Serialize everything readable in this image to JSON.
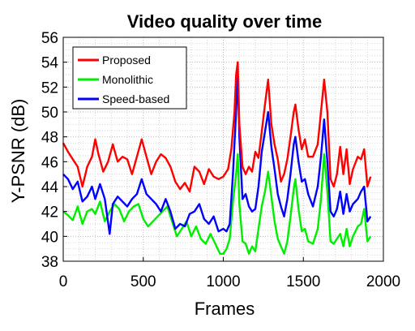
{
  "chart_data": {
    "type": "line",
    "title": "Video quality over time",
    "xlabel": "Frames",
    "ylabel": "Y-PSNR (dB)",
    "xlim": [
      0,
      2000
    ],
    "ylim": [
      38,
      56
    ],
    "xticks": [
      0,
      500,
      1000,
      1500,
      2000
    ],
    "yticks": [
      38,
      40,
      42,
      44,
      46,
      48,
      50,
      52,
      54,
      56
    ],
    "grid": true,
    "legend_position": "top-left",
    "series": [
      {
        "name": "Proposed",
        "color": "#ff0000",
        "points": [
          [
            0,
            47.5
          ],
          [
            30,
            46.8
          ],
          [
            60,
            46.2
          ],
          [
            90,
            45.6
          ],
          [
            120,
            44.0
          ],
          [
            150,
            45.6
          ],
          [
            180,
            46.4
          ],
          [
            200,
            47.8
          ],
          [
            220,
            46.6
          ],
          [
            250,
            45.2
          ],
          [
            280,
            46.0
          ],
          [
            310,
            47.4
          ],
          [
            340,
            46.0
          ],
          [
            370,
            46.4
          ],
          [
            400,
            46.2
          ],
          [
            430,
            45.0
          ],
          [
            460,
            46.4
          ],
          [
            490,
            47.8
          ],
          [
            520,
            46.4
          ],
          [
            550,
            45.0
          ],
          [
            580,
            46.0
          ],
          [
            610,
            46.6
          ],
          [
            640,
            46.3
          ],
          [
            670,
            45.6
          ],
          [
            700,
            44.4
          ],
          [
            730,
            43.8
          ],
          [
            760,
            44.3
          ],
          [
            790,
            43.6
          ],
          [
            820,
            45.6
          ],
          [
            850,
            45.2
          ],
          [
            880,
            44.2
          ],
          [
            910,
            45.4
          ],
          [
            940,
            44.8
          ],
          [
            970,
            44.6
          ],
          [
            1000,
            44.8
          ],
          [
            1030,
            45.4
          ],
          [
            1050,
            47.0
          ],
          [
            1070,
            50.0
          ],
          [
            1080,
            53.0
          ],
          [
            1090,
            54.0
          ],
          [
            1100,
            49.0
          ],
          [
            1120,
            45.6
          ],
          [
            1140,
            45.0
          ],
          [
            1160,
            45.6
          ],
          [
            1180,
            45.2
          ],
          [
            1200,
            46.8
          ],
          [
            1220,
            46.3
          ],
          [
            1240,
            48.4
          ],
          [
            1260,
            50.6
          ],
          [
            1280,
            52.6
          ],
          [
            1300,
            49.0
          ],
          [
            1320,
            47.4
          ],
          [
            1340,
            46.2
          ],
          [
            1360,
            44.4
          ],
          [
            1380,
            45.0
          ],
          [
            1400,
            46.2
          ],
          [
            1420,
            48.0
          ],
          [
            1440,
            50.0
          ],
          [
            1450,
            50.6
          ],
          [
            1470,
            48.6
          ],
          [
            1490,
            47.0
          ],
          [
            1510,
            47.8
          ],
          [
            1530,
            46.4
          ],
          [
            1560,
            46.4
          ],
          [
            1590,
            47.4
          ],
          [
            1610,
            50.0
          ],
          [
            1630,
            52.6
          ],
          [
            1650,
            50.0
          ],
          [
            1670,
            44.6
          ],
          [
            1690,
            44.0
          ],
          [
            1710,
            45.0
          ],
          [
            1730,
            47.2
          ],
          [
            1750,
            45.0
          ],
          [
            1770,
            47.0
          ],
          [
            1790,
            44.2
          ],
          [
            1810,
            45.4
          ],
          [
            1840,
            46.4
          ],
          [
            1860,
            46.2
          ],
          [
            1880,
            47.0
          ],
          [
            1900,
            44.0
          ],
          [
            1920,
            44.8
          ]
        ]
      },
      {
        "name": "Monolithic",
        "color": "#00ee00",
        "points": [
          [
            0,
            42.0
          ],
          [
            30,
            41.7
          ],
          [
            60,
            41.3
          ],
          [
            90,
            42.4
          ],
          [
            120,
            41.0
          ],
          [
            150,
            42.0
          ],
          [
            180,
            42.2
          ],
          [
            200,
            41.8
          ],
          [
            230,
            42.8
          ],
          [
            260,
            41.2
          ],
          [
            290,
            42.0
          ],
          [
            320,
            42.6
          ],
          [
            350,
            42.2
          ],
          [
            380,
            41.2
          ],
          [
            410,
            42.0
          ],
          [
            440,
            42.4
          ],
          [
            470,
            42.6
          ],
          [
            500,
            41.4
          ],
          [
            530,
            40.8
          ],
          [
            560,
            41.2
          ],
          [
            590,
            41.6
          ],
          [
            620,
            42.0
          ],
          [
            650,
            42.4
          ],
          [
            680,
            41.2
          ],
          [
            710,
            40.0
          ],
          [
            740,
            40.6
          ],
          [
            770,
            41.2
          ],
          [
            800,
            40.0
          ],
          [
            830,
            40.8
          ],
          [
            860,
            39.8
          ],
          [
            890,
            39.4
          ],
          [
            920,
            40.2
          ],
          [
            950,
            39.4
          ],
          [
            980,
            38.6
          ],
          [
            1000,
            38.6
          ],
          [
            1020,
            39.0
          ],
          [
            1040,
            39.8
          ],
          [
            1060,
            42.8
          ],
          [
            1080,
            45.0
          ],
          [
            1090,
            46.6
          ],
          [
            1100,
            42.6
          ],
          [
            1120,
            39.6
          ],
          [
            1140,
            39.4
          ],
          [
            1160,
            38.6
          ],
          [
            1180,
            39.2
          ],
          [
            1200,
            38.8
          ],
          [
            1220,
            40.6
          ],
          [
            1240,
            42.4
          ],
          [
            1260,
            43.6
          ],
          [
            1280,
            45.2
          ],
          [
            1300,
            43.2
          ],
          [
            1320,
            41.2
          ],
          [
            1340,
            39.8
          ],
          [
            1360,
            39.2
          ],
          [
            1380,
            38.6
          ],
          [
            1400,
            39.6
          ],
          [
            1420,
            41.6
          ],
          [
            1440,
            43.8
          ],
          [
            1450,
            44.6
          ],
          [
            1470,
            42.2
          ],
          [
            1490,
            40.4
          ],
          [
            1510,
            40.6
          ],
          [
            1530,
            39.6
          ],
          [
            1560,
            39.4
          ],
          [
            1590,
            40.6
          ],
          [
            1610,
            43.0
          ],
          [
            1630,
            46.6
          ],
          [
            1650,
            43.6
          ],
          [
            1670,
            39.6
          ],
          [
            1690,
            39.4
          ],
          [
            1710,
            39.8
          ],
          [
            1730,
            40.2
          ],
          [
            1750,
            39.2
          ],
          [
            1770,
            40.6
          ],
          [
            1790,
            39.2
          ],
          [
            1810,
            40.0
          ],
          [
            1840,
            40.8
          ],
          [
            1860,
            41.0
          ],
          [
            1880,
            42.2
          ],
          [
            1900,
            39.6
          ],
          [
            1920,
            40.0
          ]
        ]
      },
      {
        "name": "Speed-based",
        "color": "#0000ff",
        "points": [
          [
            0,
            45.0
          ],
          [
            30,
            44.6
          ],
          [
            60,
            43.8
          ],
          [
            90,
            44.4
          ],
          [
            120,
            42.8
          ],
          [
            150,
            43.2
          ],
          [
            180,
            44.0
          ],
          [
            200,
            43.0
          ],
          [
            230,
            44.2
          ],
          [
            260,
            43.0
          ],
          [
            290,
            40.2
          ],
          [
            310,
            42.6
          ],
          [
            340,
            43.2
          ],
          [
            370,
            42.8
          ],
          [
            400,
            42.4
          ],
          [
            430,
            43.0
          ],
          [
            460,
            43.4
          ],
          [
            490,
            44.6
          ],
          [
            520,
            43.4
          ],
          [
            550,
            43.0
          ],
          [
            580,
            42.6
          ],
          [
            610,
            42.0
          ],
          [
            640,
            43.0
          ],
          [
            670,
            42.0
          ],
          [
            700,
            40.6
          ],
          [
            730,
            41.0
          ],
          [
            760,
            40.8
          ],
          [
            790,
            41.8
          ],
          [
            820,
            42.0
          ],
          [
            850,
            42.6
          ],
          [
            880,
            41.4
          ],
          [
            910,
            41.0
          ],
          [
            940,
            41.6
          ],
          [
            970,
            40.4
          ],
          [
            1000,
            40.6
          ],
          [
            1020,
            40.4
          ],
          [
            1040,
            41.0
          ],
          [
            1060,
            45.0
          ],
          [
            1080,
            50.0
          ],
          [
            1090,
            53.0
          ],
          [
            1100,
            48.0
          ],
          [
            1120,
            43.0
          ],
          [
            1140,
            43.4
          ],
          [
            1160,
            42.4
          ],
          [
            1180,
            42.0
          ],
          [
            1200,
            42.2
          ],
          [
            1220,
            44.0
          ],
          [
            1240,
            46.8
          ],
          [
            1260,
            48.4
          ],
          [
            1280,
            50.0
          ],
          [
            1300,
            47.2
          ],
          [
            1320,
            45.4
          ],
          [
            1340,
            43.4
          ],
          [
            1360,
            42.4
          ],
          [
            1380,
            41.6
          ],
          [
            1400,
            43.0
          ],
          [
            1420,
            45.0
          ],
          [
            1440,
            47.4
          ],
          [
            1450,
            48.0
          ],
          [
            1470,
            46.0
          ],
          [
            1490,
            44.4
          ],
          [
            1510,
            44.6
          ],
          [
            1530,
            43.4
          ],
          [
            1560,
            42.4
          ],
          [
            1590,
            44.0
          ],
          [
            1610,
            46.4
          ],
          [
            1630,
            49.4
          ],
          [
            1650,
            46.0
          ],
          [
            1670,
            42.0
          ],
          [
            1690,
            41.6
          ],
          [
            1710,
            42.2
          ],
          [
            1730,
            43.6
          ],
          [
            1750,
            41.8
          ],
          [
            1770,
            43.4
          ],
          [
            1790,
            42.0
          ],
          [
            1810,
            42.6
          ],
          [
            1840,
            43.0
          ],
          [
            1860,
            43.6
          ],
          [
            1880,
            44.0
          ],
          [
            1900,
            41.2
          ],
          [
            1920,
            41.6
          ]
        ]
      }
    ]
  }
}
